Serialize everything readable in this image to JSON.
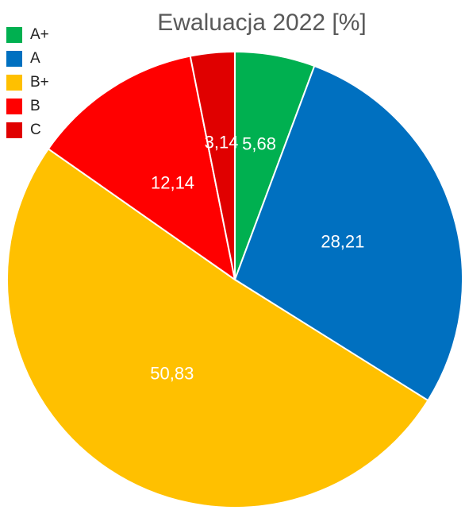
{
  "chart_data": {
    "type": "pie",
    "title": "Ewaluacja 2022 [%]",
    "categories": [
      "A+",
      "A",
      "B+",
      "B",
      "C"
    ],
    "values": [
      5.68,
      28.21,
      50.83,
      12.14,
      3.14
    ],
    "value_labels": [
      "5,68",
      "28,21",
      "50,83",
      "12,14",
      "3,14"
    ],
    "colors": [
      "#00b050",
      "#0070c0",
      "#ffc000",
      "#ff0000",
      "#e00000"
    ],
    "legend": "top-left"
  }
}
